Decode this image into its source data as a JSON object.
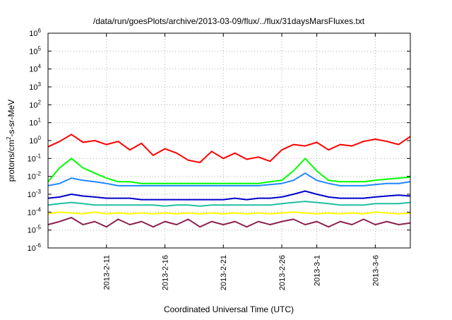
{
  "chart_data": {
    "type": "line",
    "title": "/data/run/goesPlots/archive/2013-03-09/flux/../flux/31daysMarsFluxes.txt",
    "xlabel": "Coordinated Universal Time (UTC)",
    "ylabel": {
      "before": "protons/cm",
      "sup": "2",
      "after": "-s-sr-MeV"
    },
    "yscale": "log",
    "ylim": [
      1e-06,
      1000000.0
    ],
    "xlim": [
      "2013-02-06",
      "2013-03-09"
    ],
    "grid": true,
    "y_ticks": [
      {
        "value": 1e-06,
        "base": "10",
        "exp": "-6"
      },
      {
        "value": 1e-05,
        "base": "10",
        "exp": "-5"
      },
      {
        "value": 0.0001,
        "base": "10",
        "exp": "-4"
      },
      {
        "value": 0.001,
        "base": "10",
        "exp": "-3"
      },
      {
        "value": 0.01,
        "base": "10",
        "exp": "-2"
      },
      {
        "value": 0.1,
        "base": "10",
        "exp": "-1"
      },
      {
        "value": 1.0,
        "base": "10",
        "exp": "0"
      },
      {
        "value": 10.0,
        "base": "10",
        "exp": "1"
      },
      {
        "value": 100.0,
        "base": "10",
        "exp": "2"
      },
      {
        "value": 1000.0,
        "base": "10",
        "exp": "3"
      },
      {
        "value": 10000.0,
        "base": "10",
        "exp": "4"
      },
      {
        "value": 100000.0,
        "base": "10",
        "exp": "5"
      },
      {
        "value": 1000000.0,
        "base": "10",
        "exp": "6"
      }
    ],
    "x_ticks": [
      {
        "date": "2013-02-11",
        "label": "2013-2-11"
      },
      {
        "date": "2013-02-16",
        "label": "2013-2-16"
      },
      {
        "date": "2013-02-21",
        "label": "2013-2-21"
      },
      {
        "date": "2013-02-26",
        "label": "2013-2-26"
      },
      {
        "date": "2013-03-01",
        "label": "2013-3-1"
      },
      {
        "date": "2013-03-06",
        "label": "2013-3-6"
      }
    ],
    "series": [
      {
        "color": "#ff0000",
        "points": [
          [
            "2013-02-06",
            0.45
          ],
          [
            "2013-02-07",
            0.9
          ],
          [
            "2013-02-08",
            2.2
          ],
          [
            "2013-02-09",
            0.8
          ],
          [
            "2013-02-10",
            1.0
          ],
          [
            "2013-02-11",
            0.6
          ],
          [
            "2013-02-12",
            0.9
          ],
          [
            "2013-02-13",
            0.3
          ],
          [
            "2013-02-14",
            0.7
          ],
          [
            "2013-02-15",
            0.15
          ],
          [
            "2013-02-16",
            0.35
          ],
          [
            "2013-02-17",
            0.2
          ],
          [
            "2013-02-18",
            0.08
          ],
          [
            "2013-02-19",
            0.06
          ],
          [
            "2013-02-20",
            0.25
          ],
          [
            "2013-02-21",
            0.1
          ],
          [
            "2013-02-22",
            0.2
          ],
          [
            "2013-02-23",
            0.09
          ],
          [
            "2013-02-24",
            0.12
          ],
          [
            "2013-02-25",
            0.07
          ],
          [
            "2013-02-26",
            0.3
          ],
          [
            "2013-02-27",
            0.6
          ],
          [
            "2013-02-28",
            0.5
          ],
          [
            "2013-03-01",
            0.8
          ],
          [
            "2013-03-02",
            0.3
          ],
          [
            "2013-03-03",
            0.6
          ],
          [
            "2013-03-04",
            0.5
          ],
          [
            "2013-03-05",
            0.9
          ],
          [
            "2013-03-06",
            1.2
          ],
          [
            "2013-03-07",
            0.9
          ],
          [
            "2013-03-08",
            0.6
          ],
          [
            "2013-03-09",
            1.7
          ]
        ]
      },
      {
        "color": "#00ff00",
        "points": [
          [
            "2013-02-06",
            0.005
          ],
          [
            "2013-02-07",
            0.03
          ],
          [
            "2013-02-08",
            0.1
          ],
          [
            "2013-02-09",
            0.03
          ],
          [
            "2013-02-10",
            0.015
          ],
          [
            "2013-02-11",
            0.008
          ],
          [
            "2013-02-12",
            0.005
          ],
          [
            "2013-02-13",
            0.005
          ],
          [
            "2013-02-14",
            0.004
          ],
          [
            "2013-02-15",
            0.004
          ],
          [
            "2013-02-16",
            0.004
          ],
          [
            "2013-02-17",
            0.004
          ],
          [
            "2013-02-18",
            0.004
          ],
          [
            "2013-02-19",
            0.004
          ],
          [
            "2013-02-20",
            0.004
          ],
          [
            "2013-02-21",
            0.004
          ],
          [
            "2013-02-22",
            0.004
          ],
          [
            "2013-02-23",
            0.004
          ],
          [
            "2013-02-24",
            0.004
          ],
          [
            "2013-02-25",
            0.005
          ],
          [
            "2013-02-26",
            0.006
          ],
          [
            "2013-02-27",
            0.02
          ],
          [
            "2013-02-28",
            0.1
          ],
          [
            "2013-03-01",
            0.02
          ],
          [
            "2013-03-02",
            0.006
          ],
          [
            "2013-03-03",
            0.005
          ],
          [
            "2013-03-04",
            0.005
          ],
          [
            "2013-03-05",
            0.005
          ],
          [
            "2013-03-06",
            0.006
          ],
          [
            "2013-03-07",
            0.007
          ],
          [
            "2013-03-08",
            0.008
          ],
          [
            "2013-03-09",
            0.009
          ]
        ]
      },
      {
        "color": "#1e88ff",
        "points": [
          [
            "2013-02-06",
            0.003
          ],
          [
            "2013-02-07",
            0.004
          ],
          [
            "2013-02-08",
            0.008
          ],
          [
            "2013-02-09",
            0.006
          ],
          [
            "2013-02-10",
            0.005
          ],
          [
            "2013-02-11",
            0.004
          ],
          [
            "2013-02-12",
            0.003
          ],
          [
            "2013-02-13",
            0.003
          ],
          [
            "2013-02-14",
            0.003
          ],
          [
            "2013-02-15",
            0.003
          ],
          [
            "2013-02-16",
            0.003
          ],
          [
            "2013-02-17",
            0.003
          ],
          [
            "2013-02-18",
            0.003
          ],
          [
            "2013-02-19",
            0.003
          ],
          [
            "2013-02-20",
            0.003
          ],
          [
            "2013-02-21",
            0.003
          ],
          [
            "2013-02-22",
            0.003
          ],
          [
            "2013-02-23",
            0.003
          ],
          [
            "2013-02-24",
            0.003
          ],
          [
            "2013-02-25",
            0.0035
          ],
          [
            "2013-02-26",
            0.004
          ],
          [
            "2013-02-27",
            0.006
          ],
          [
            "2013-02-28",
            0.015
          ],
          [
            "2013-03-01",
            0.006
          ],
          [
            "2013-03-02",
            0.004
          ],
          [
            "2013-03-03",
            0.003
          ],
          [
            "2013-03-04",
            0.003
          ],
          [
            "2013-03-05",
            0.003
          ],
          [
            "2013-03-06",
            0.0035
          ],
          [
            "2013-03-07",
            0.004
          ],
          [
            "2013-03-08",
            0.004
          ],
          [
            "2013-03-09",
            0.005
          ]
        ]
      },
      {
        "color": "#0000cc",
        "points": [
          [
            "2013-02-06",
            0.0006
          ],
          [
            "2013-02-07",
            0.0007
          ],
          [
            "2013-02-08",
            0.001
          ],
          [
            "2013-02-09",
            0.0008
          ],
          [
            "2013-02-10",
            0.0007
          ],
          [
            "2013-02-11",
            0.0006
          ],
          [
            "2013-02-12",
            0.0006
          ],
          [
            "2013-02-13",
            0.0006
          ],
          [
            "2013-02-14",
            0.0005
          ],
          [
            "2013-02-15",
            0.0005
          ],
          [
            "2013-02-16",
            0.0005
          ],
          [
            "2013-02-17",
            0.0005
          ],
          [
            "2013-02-18",
            0.0005
          ],
          [
            "2013-02-19",
            0.0005
          ],
          [
            "2013-02-20",
            0.0005
          ],
          [
            "2013-02-21",
            0.0005
          ],
          [
            "2013-02-22",
            0.0006
          ],
          [
            "2013-02-23",
            0.0005
          ],
          [
            "2013-02-24",
            0.0006
          ],
          [
            "2013-02-25",
            0.0006
          ],
          [
            "2013-02-26",
            0.0007
          ],
          [
            "2013-02-27",
            0.001
          ],
          [
            "2013-02-28",
            0.0015
          ],
          [
            "2013-03-01",
            0.001
          ],
          [
            "2013-03-02",
            0.0007
          ],
          [
            "2013-03-03",
            0.0006
          ],
          [
            "2013-03-04",
            0.0006
          ],
          [
            "2013-03-05",
            0.0006
          ],
          [
            "2013-03-06",
            0.0007
          ],
          [
            "2013-03-07",
            0.0008
          ],
          [
            "2013-03-08",
            0.0009
          ],
          [
            "2013-03-09",
            0.0008
          ]
        ]
      },
      {
        "color": "#20c0a0",
        "points": [
          [
            "2013-02-06",
            0.00025
          ],
          [
            "2013-02-07",
            0.0003
          ],
          [
            "2013-02-08",
            0.00035
          ],
          [
            "2013-02-09",
            0.0003
          ],
          [
            "2013-02-10",
            0.00025
          ],
          [
            "2013-02-11",
            0.00025
          ],
          [
            "2013-02-12",
            0.00025
          ],
          [
            "2013-02-13",
            0.00025
          ],
          [
            "2013-02-14",
            0.00025
          ],
          [
            "2013-02-15",
            0.00025
          ],
          [
            "2013-02-16",
            0.00022
          ],
          [
            "2013-02-17",
            0.00025
          ],
          [
            "2013-02-18",
            0.00025
          ],
          [
            "2013-02-19",
            0.00022
          ],
          [
            "2013-02-20",
            0.00025
          ],
          [
            "2013-02-21",
            0.00025
          ],
          [
            "2013-02-22",
            0.00025
          ],
          [
            "2013-02-23",
            0.00025
          ],
          [
            "2013-02-24",
            0.00025
          ],
          [
            "2013-02-25",
            0.00025
          ],
          [
            "2013-02-26",
            0.0003
          ],
          [
            "2013-02-27",
            0.00035
          ],
          [
            "2013-02-28",
            0.0004
          ],
          [
            "2013-03-01",
            0.00035
          ],
          [
            "2013-03-02",
            0.0003
          ],
          [
            "2013-03-03",
            0.00025
          ],
          [
            "2013-03-04",
            0.00025
          ],
          [
            "2013-03-05",
            0.00025
          ],
          [
            "2013-03-06",
            0.0003
          ],
          [
            "2013-03-07",
            0.0003
          ],
          [
            "2013-03-08",
            0.0003
          ],
          [
            "2013-03-09",
            0.00035
          ]
        ]
      },
      {
        "color": "#ffff00",
        "points": [
          [
            "2013-02-06",
            8e-05
          ],
          [
            "2013-02-07",
            0.0001
          ],
          [
            "2013-02-08",
            9e-05
          ],
          [
            "2013-02-09",
            8e-05
          ],
          [
            "2013-02-10",
            0.0001
          ],
          [
            "2013-02-11",
            8e-05
          ],
          [
            "2013-02-12",
            9e-05
          ],
          [
            "2013-02-13",
            8e-05
          ],
          [
            "2013-02-14",
            9e-05
          ],
          [
            "2013-02-15",
            8e-05
          ],
          [
            "2013-02-16",
            9e-05
          ],
          [
            "2013-02-17",
            8e-05
          ],
          [
            "2013-02-18",
            9e-05
          ],
          [
            "2013-02-19",
            8e-05
          ],
          [
            "2013-02-20",
            9e-05
          ],
          [
            "2013-02-21",
            8e-05
          ],
          [
            "2013-02-22",
            9e-05
          ],
          [
            "2013-02-23",
            8e-05
          ],
          [
            "2013-02-24",
            9e-05
          ],
          [
            "2013-02-25",
            8e-05
          ],
          [
            "2013-02-26",
            9e-05
          ],
          [
            "2013-02-27",
            0.0001
          ],
          [
            "2013-02-28",
            9e-05
          ],
          [
            "2013-03-01",
            8e-05
          ],
          [
            "2013-03-02",
            9e-05
          ],
          [
            "2013-03-03",
            8e-05
          ],
          [
            "2013-03-04",
            9e-05
          ],
          [
            "2013-03-05",
            8e-05
          ],
          [
            "2013-03-06",
            0.0001
          ],
          [
            "2013-03-07",
            9e-05
          ],
          [
            "2013-03-08",
            8e-05
          ],
          [
            "2013-03-09",
            9e-05
          ]
        ]
      },
      {
        "color": "#8b2252",
        "points": [
          [
            "2013-02-06",
            2e-05
          ],
          [
            "2013-02-07",
            3e-05
          ],
          [
            "2013-02-08",
            5e-05
          ],
          [
            "2013-02-09",
            2e-05
          ],
          [
            "2013-02-10",
            3e-05
          ],
          [
            "2013-02-11",
            1.5e-05
          ],
          [
            "2013-02-12",
            4e-05
          ],
          [
            "2013-02-13",
            2e-05
          ],
          [
            "2013-02-14",
            3e-05
          ],
          [
            "2013-02-15",
            1.5e-05
          ],
          [
            "2013-02-16",
            3e-05
          ],
          [
            "2013-02-17",
            2e-05
          ],
          [
            "2013-02-18",
            4e-05
          ],
          [
            "2013-02-19",
            1.5e-05
          ],
          [
            "2013-02-20",
            3e-05
          ],
          [
            "2013-02-21",
            2e-05
          ],
          [
            "2013-02-22",
            3e-05
          ],
          [
            "2013-02-23",
            1.5e-05
          ],
          [
            "2013-02-24",
            3e-05
          ],
          [
            "2013-02-25",
            2e-05
          ],
          [
            "2013-02-26",
            3e-05
          ],
          [
            "2013-02-27",
            4e-05
          ],
          [
            "2013-02-28",
            2e-05
          ],
          [
            "2013-03-01",
            3e-05
          ],
          [
            "2013-03-02",
            1.5e-05
          ],
          [
            "2013-03-03",
            3e-05
          ],
          [
            "2013-03-04",
            2e-05
          ],
          [
            "2013-03-05",
            4e-05
          ],
          [
            "2013-03-06",
            2e-05
          ],
          [
            "2013-03-07",
            3e-05
          ],
          [
            "2013-03-08",
            2e-05
          ],
          [
            "2013-03-09",
            2.5e-05
          ]
        ]
      }
    ]
  }
}
